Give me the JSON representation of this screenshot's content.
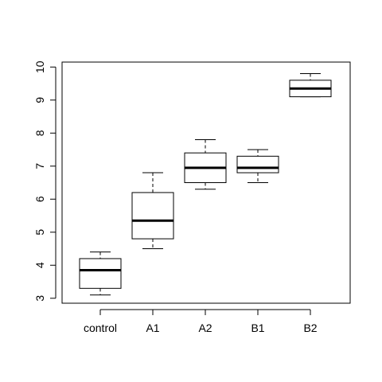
{
  "chart_data": {
    "type": "boxplot",
    "categories": [
      "control",
      "A1",
      "A2",
      "B1",
      "B2"
    ],
    "boxes": [
      {
        "category": "control",
        "whisker_low": 3.1,
        "q1": 3.3,
        "median": 3.85,
        "q3": 4.2,
        "whisker_high": 4.4
      },
      {
        "category": "A1",
        "whisker_low": 4.5,
        "q1": 4.8,
        "median": 5.35,
        "q3": 6.2,
        "whisker_high": 6.8
      },
      {
        "category": "A2",
        "whisker_low": 6.3,
        "q1": 6.5,
        "median": 6.95,
        "q3": 7.4,
        "whisker_high": 7.8
      },
      {
        "category": "B1",
        "whisker_low": 6.5,
        "q1": 6.8,
        "median": 6.95,
        "q3": 7.3,
        "whisker_high": 7.5
      },
      {
        "category": "B2",
        "whisker_low": 9.1,
        "q1": 9.1,
        "median": 9.35,
        "q3": 9.6,
        "whisker_high": 9.8
      }
    ],
    "y_ticks": [
      3,
      4,
      5,
      6,
      7,
      8,
      9,
      10
    ],
    "ylim": [
      2.85,
      10.15
    ],
    "title": "",
    "xlabel": "",
    "ylabel": "",
    "grid": false,
    "legend": "none",
    "colors": {
      "line": "#000000",
      "box_fill": "#ffffff",
      "background": "#ffffff"
    }
  }
}
